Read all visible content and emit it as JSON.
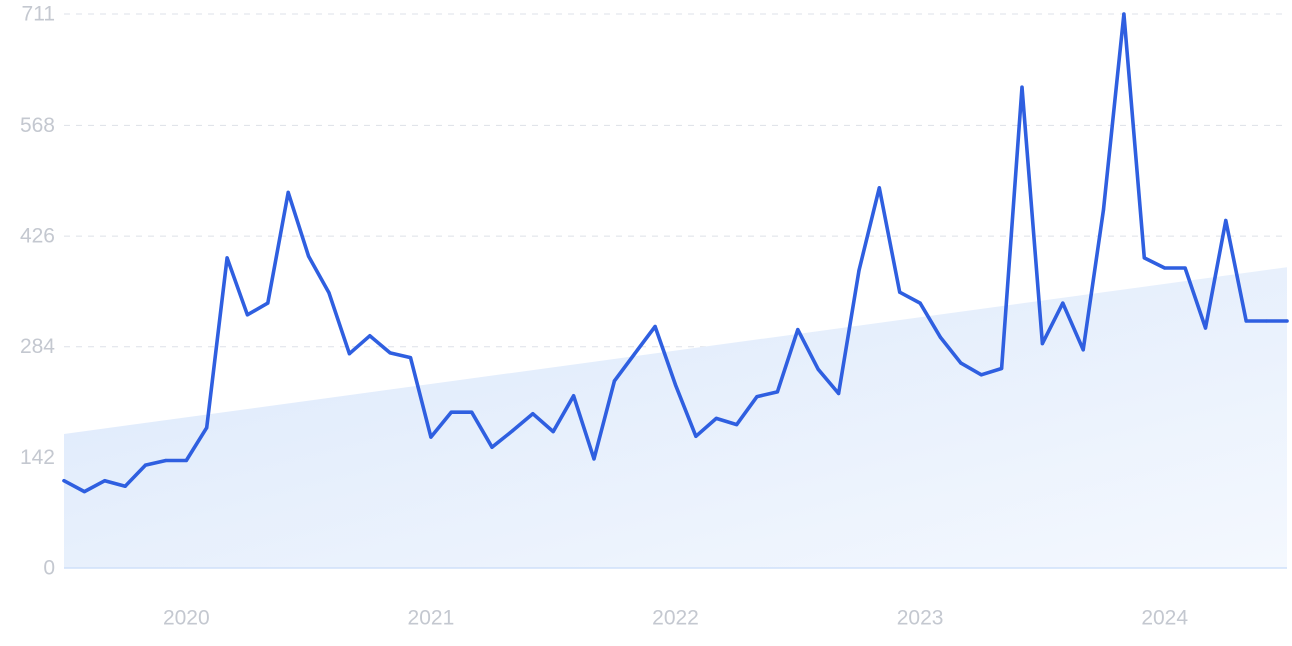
{
  "chart_data": {
    "type": "line",
    "title": "",
    "xlabel": "",
    "ylabel": "",
    "y_ticks": [
      "0",
      "142",
      "284",
      "426",
      "568",
      "711"
    ],
    "y_tick_values": [
      0,
      142,
      284,
      426,
      568,
      711
    ],
    "x_ticks": [
      "2020",
      "2021",
      "2022",
      "2023",
      "2024"
    ],
    "x_tick_dates": [
      "2020-01",
      "2021-01",
      "2022-01",
      "2023-01",
      "2024-01"
    ],
    "ylim": [
      0,
      711
    ],
    "xlim": [
      "2019-07",
      "2024-07"
    ],
    "grid": true,
    "colors": {
      "line": "#2f5fe0",
      "trend_fill_top": "#dbe8fb",
      "trend_fill_bottom": "#f4f8fe",
      "tick_text": "#c4c8d0",
      "grid": "#dde1e8"
    },
    "series": [
      {
        "x": [
          "2019-07",
          "2019-08",
          "2019-09",
          "2019-10",
          "2019-11",
          "2019-12",
          "2020-01",
          "2020-02",
          "2020-03",
          "2020-04",
          "2020-05",
          "2020-06",
          "2020-07",
          "2020-08",
          "2020-09",
          "2020-10",
          "2020-11",
          "2020-12",
          "2021-01",
          "2021-02",
          "2021-03",
          "2021-04",
          "2021-05",
          "2021-06",
          "2021-07",
          "2021-08",
          "2021-09",
          "2021-10",
          "2021-11",
          "2021-12",
          "2022-01",
          "2022-02",
          "2022-03",
          "2022-04",
          "2022-05",
          "2022-06",
          "2022-07",
          "2022-08",
          "2022-09",
          "2022-10",
          "2022-11",
          "2022-12",
          "2023-01",
          "2023-02",
          "2023-03",
          "2023-04",
          "2023-05",
          "2023-06",
          "2023-07",
          "2023-08",
          "2023-09",
          "2023-10",
          "2023-11",
          "2023-12",
          "2024-01",
          "2024-02",
          "2024-03",
          "2024-04",
          "2024-05",
          "2024-06",
          "2024-07"
        ],
        "values": [
          112,
          98,
          112,
          105,
          132,
          138,
          138,
          180,
          398,
          325,
          340,
          482,
          400,
          353,
          275,
          298,
          276,
          270,
          168,
          200,
          200,
          155,
          176,
          198,
          175,
          221,
          140,
          240,
          275,
          310,
          235,
          169,
          192,
          184,
          220,
          226,
          306,
          255,
          224,
          382,
          488,
          354,
          340,
          296,
          263,
          248,
          256,
          617,
          288,
          340,
          280,
          460,
          711,
          398,
          385,
          385,
          308,
          446,
          317,
          317,
          317
        ]
      }
    ],
    "trend_band": {
      "x": [
        "2019-07",
        "2024-07"
      ],
      "values": [
        172,
        386
      ]
    }
  }
}
